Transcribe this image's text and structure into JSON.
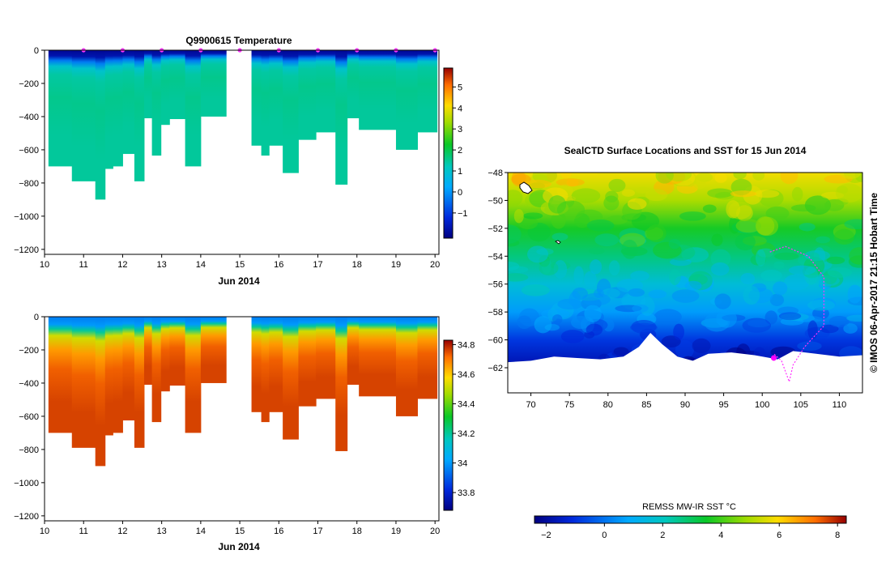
{
  "figure": {
    "left_panels_date_label": "Jun 2014",
    "credit": "© IMOS 06-Apr-2017 21:15 Hobart Time"
  },
  "chart_data": [
    {
      "type": "heatmap",
      "title": "Q9900615  Temperature",
      "variable": "temperature",
      "xlabel": "Jun 2014",
      "ylabel": "",
      "x_ticks": [
        10,
        11,
        12,
        13,
        14,
        15,
        16,
        17,
        18,
        19,
        20
      ],
      "y_ticks": [
        0,
        -200,
        -400,
        -600,
        -800,
        -1000,
        -1200
      ],
      "xlim": [
        10,
        20.1
      ],
      "ylim": [
        -1230,
        0
      ],
      "profile_markers_x": [
        11,
        12,
        13,
        14,
        15,
        16,
        17,
        18,
        19,
        20
      ],
      "colorbar": {
        "min": -2.2,
        "max": 5.9,
        "ticks": [
          -1,
          0,
          1,
          2,
          3,
          4,
          5
        ]
      },
      "profiles": [
        {
          "x0": 10.1,
          "x1": 10.7,
          "max_depth": 700
        },
        {
          "x0": 10.7,
          "x1": 11.3,
          "max_depth": 790
        },
        {
          "x0": 11.3,
          "x1": 11.55,
          "max_depth": 900
        },
        {
          "x0": 11.55,
          "x1": 11.75,
          "max_depth": 715
        },
        {
          "x0": 11.75,
          "x1": 12.0,
          "max_depth": 700
        },
        {
          "x0": 12.0,
          "x1": 12.3,
          "max_depth": 625
        },
        {
          "x0": 12.3,
          "x1": 12.55,
          "max_depth": 790
        },
        {
          "x0": 12.55,
          "x1": 12.75,
          "max_depth": 410
        },
        {
          "x0": 12.75,
          "x1": 12.98,
          "max_depth": 635
        },
        {
          "x0": 12.98,
          "x1": 13.2,
          "max_depth": 450
        },
        {
          "x0": 13.2,
          "x1": 13.6,
          "max_depth": 415
        },
        {
          "x0": 13.6,
          "x1": 14.0,
          "max_depth": 700
        },
        {
          "x0": 14.0,
          "x1": 14.65,
          "max_depth": 400
        },
        {
          "x0": 15.3,
          "x1": 15.55,
          "max_depth": 575
        },
        {
          "x0": 15.55,
          "x1": 15.75,
          "max_depth": 635
        },
        {
          "x0": 15.75,
          "x1": 16.1,
          "max_depth": 575
        },
        {
          "x0": 16.1,
          "x1": 16.5,
          "max_depth": 740
        },
        {
          "x0": 16.5,
          "x1": 16.95,
          "max_depth": 540
        },
        {
          "x0": 16.95,
          "x1": 17.45,
          "max_depth": 495
        },
        {
          "x0": 17.45,
          "x1": 17.75,
          "max_depth": 810
        },
        {
          "x0": 17.75,
          "x1": 18.05,
          "max_depth": 410
        },
        {
          "x0": 18.05,
          "x1": 19.0,
          "max_depth": 480
        },
        {
          "x0": 19.0,
          "x1": 19.55,
          "max_depth": 600
        },
        {
          "x0": 19.55,
          "x1": 20.05,
          "max_depth": 495
        }
      ],
      "vertical_profile": [
        {
          "depth": 0,
          "value": -2.0
        },
        {
          "depth": 60,
          "value": -1.7
        },
        {
          "depth": 110,
          "value": -0.3
        },
        {
          "depth": 170,
          "value": 1.0
        },
        {
          "depth": 260,
          "value": 1.4
        },
        {
          "depth": 500,
          "value": 1.55
        },
        {
          "depth": 900,
          "value": 1.45
        }
      ]
    },
    {
      "type": "heatmap",
      "title": "",
      "variable": "salinity",
      "xlabel": "Jun 2014",
      "ylabel": "",
      "x_ticks": [
        10,
        11,
        12,
        13,
        14,
        15,
        16,
        17,
        18,
        19,
        20
      ],
      "y_ticks": [
        0,
        -200,
        -400,
        -600,
        -800,
        -1000,
        -1200
      ],
      "xlim": [
        10,
        20.1
      ],
      "ylim": [
        -1230,
        0
      ],
      "colorbar": {
        "min": 33.68,
        "max": 34.83,
        "ticks": [
          33.8,
          34,
          34.2,
          34.4,
          34.6,
          34.8
        ]
      },
      "profiles_same_as_panel": 0,
      "vertical_profile": [
        {
          "depth": 0,
          "value": 33.95
        },
        {
          "depth": 80,
          "value": 34.0
        },
        {
          "depth": 130,
          "value": 34.2
        },
        {
          "depth": 200,
          "value": 34.52
        },
        {
          "depth": 350,
          "value": 34.66
        },
        {
          "depth": 550,
          "value": 34.73
        },
        {
          "depth": 900,
          "value": 34.76
        }
      ]
    },
    {
      "type": "heatmap",
      "title": "SealCTD Surface Locations and SST for 15 Jun 2014",
      "variable": "sea surface temperature",
      "xlabel": "",
      "ylabel": "",
      "x_ticks": [
        70,
        75,
        80,
        85,
        90,
        95,
        100,
        105,
        110
      ],
      "y_ticks": [
        -48,
        -50,
        -52,
        -54,
        -56,
        -58,
        -60,
        -62
      ],
      "xlim": [
        67,
        113
      ],
      "ylim": [
        -63.8,
        -48
      ],
      "colorbar": {
        "label": "REMSS MW-IR SST °C",
        "min": -2.4,
        "max": 8.3,
        "ticks": [
          -2,
          0,
          2,
          4,
          6,
          8
        ]
      },
      "sst_by_latitude": [
        {
          "lat": -48,
          "value": 5.8
        },
        {
          "lat": -50,
          "value": 5.0
        },
        {
          "lat": -52,
          "value": 3.6
        },
        {
          "lat": -54,
          "value": 2.7
        },
        {
          "lat": -56,
          "value": 1.6
        },
        {
          "lat": -58,
          "value": 0.6
        },
        {
          "lat": -60,
          "value": -0.9
        },
        {
          "lat": -61.5,
          "value": -1.6
        }
      ],
      "ice_edge": [
        {
          "lon": 67,
          "lat": -61.6
        },
        {
          "lon": 70,
          "lat": -61.5
        },
        {
          "lon": 73,
          "lat": -61.2
        },
        {
          "lon": 76,
          "lat": -61.3
        },
        {
          "lon": 79,
          "lat": -61.4
        },
        {
          "lon": 82,
          "lat": -61.2
        },
        {
          "lon": 84,
          "lat": -60.5
        },
        {
          "lon": 85.5,
          "lat": -59.5
        },
        {
          "lon": 87,
          "lat": -60.3
        },
        {
          "lon": 89,
          "lat": -61.2
        },
        {
          "lon": 91,
          "lat": -61.5
        },
        {
          "lon": 93,
          "lat": -61.0
        },
        {
          "lon": 96,
          "lat": -60.9
        },
        {
          "lon": 99,
          "lat": -61.1
        },
        {
          "lon": 102,
          "lat": -61.4
        },
        {
          "lon": 104,
          "lat": -60.8
        },
        {
          "lon": 107,
          "lat": -61.0
        },
        {
          "lon": 110,
          "lat": -61.2
        },
        {
          "lon": 113,
          "lat": -61.1
        }
      ],
      "seal_track": [
        {
          "lon": 101,
          "lat": -53.7
        },
        {
          "lon": 103,
          "lat": -53.3
        },
        {
          "lon": 106,
          "lat": -54.0
        },
        {
          "lon": 108,
          "lat": -55.5
        },
        {
          "lon": 108,
          "lat": -57.5
        },
        {
          "lon": 108,
          "lat": -59.0
        },
        {
          "lon": 105.5,
          "lat": -60.5
        },
        {
          "lon": 104,
          "lat": -61.8
        },
        {
          "lon": 103.5,
          "lat": -63.0
        },
        {
          "lon": 102.5,
          "lat": -61.5
        },
        {
          "lon": 101.5,
          "lat": -61.0
        }
      ],
      "current_location": {
        "lon": 101.5,
        "lat": -61.3
      }
    }
  ]
}
